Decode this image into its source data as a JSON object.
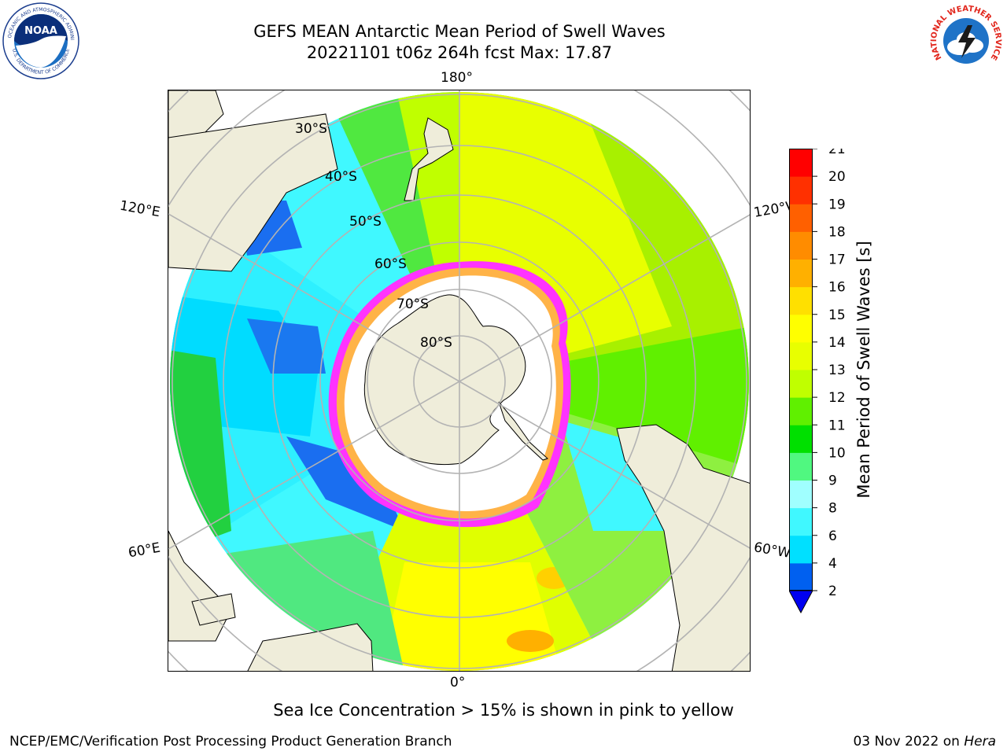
{
  "title_line1": "GEFS MEAN Antarctic Mean Period of Swell Waves",
  "title_line2": "20221101 t06z 264h fcst   Max: 17.87",
  "map": {
    "projection": "south-polar-stereographic",
    "longitude_labels": {
      "top": "180°",
      "bottom": "0°",
      "upper_left": "120°E",
      "upper_right": "120°W",
      "lower_left": "60°E",
      "lower_right": "60°W"
    },
    "latitude_labels": [
      "30°S",
      "40°S",
      "50°S",
      "60°S",
      "70°S",
      "80°S"
    ],
    "land_color": "#efedda",
    "grid_color": "#b3b3b3",
    "sea_ice_colors": [
      "#ff33ff",
      "#ffb347",
      "#ffff66"
    ]
  },
  "colorbar": {
    "title": "Mean Period of Swell Waves [s]",
    "ticks": [
      "2",
      "4",
      "6",
      "8",
      "9",
      "10",
      "11",
      "12",
      "13",
      "14",
      "15",
      "16",
      "17",
      "18",
      "19",
      "20",
      "21"
    ],
    "colors": [
      "#0060f0",
      "#00e0ff",
      "#40f8ff",
      "#a0ffff",
      "#50f880",
      "#00e000",
      "#60f000",
      "#c0ff00",
      "#e8ff00",
      "#ffff00",
      "#ffe000",
      "#ffb000",
      "#ff8c00",
      "#ff6000",
      "#ff3000",
      "#ff0000"
    ],
    "extend_color": "#0000f0"
  },
  "caption": "Sea Ice Concentration > 15% is shown in pink to yellow",
  "footer": {
    "left": "NCEP/EMC/Verification Post Processing Product Generation Branch",
    "date": "03 Nov 2022 on ",
    "machine": "Hera"
  },
  "logos": {
    "noaa_text": "NOAA",
    "noaa_ring_top": "NATIONAL OCEANIC AND ATMOSPHERIC ADMINISTRATION",
    "noaa_ring_bottom": "U.S. DEPARTMENT OF COMMERCE",
    "nws_ring": "NATIONAL WEATHER SERVICE"
  }
}
